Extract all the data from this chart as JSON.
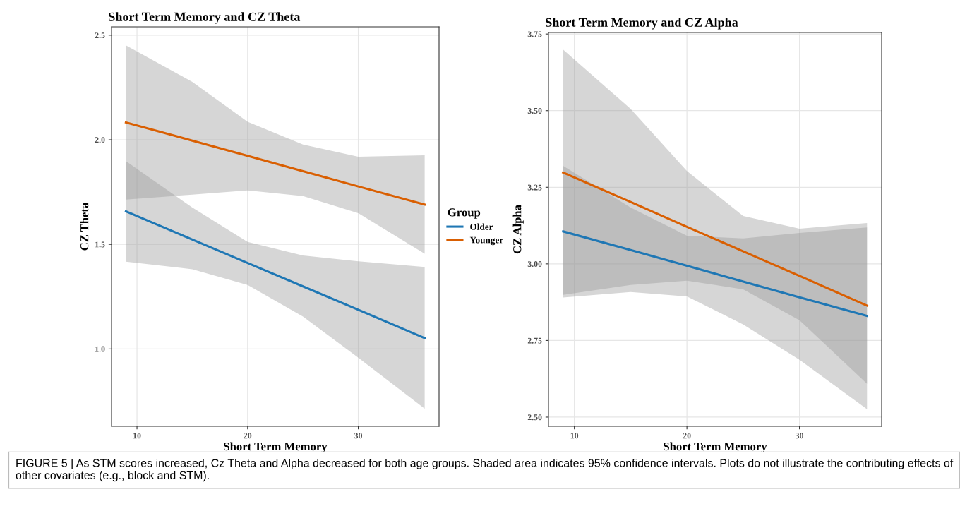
{
  "chart_data": [
    {
      "type": "line",
      "title": "Short Term Memory and CZ Theta",
      "xlabel": "Short Term Memory",
      "ylabel": "CZ Theta",
      "legend_title": "Group",
      "legend": "right",
      "grid": true,
      "marker": "none",
      "line_style": "solid",
      "xlim": [
        7.7,
        37.3
      ],
      "xticks": [
        10,
        20,
        30
      ],
      "ylim": [
        0.63,
        2.54
      ],
      "yticks": [
        {
          "value": 1.0,
          "label": "1.0"
        },
        {
          "value": 1.5,
          "label": "1.5"
        },
        {
          "value": 2.0,
          "label": "2.0"
        },
        {
          "value": 2.5,
          "label": "2.5"
        }
      ],
      "series": [
        {
          "name": "Older",
          "color": "#1f77b4",
          "x": [
            9,
            15,
            20,
            25,
            30,
            36
          ],
          "values": [
            1.658,
            1.523,
            1.411,
            1.299,
            1.187,
            1.052
          ],
          "lower": [
            1.417,
            1.381,
            1.306,
            1.155,
            0.958,
            0.714
          ],
          "upper": [
            1.898,
            1.676,
            1.512,
            1.447,
            1.419,
            1.392
          ]
        },
        {
          "name": "Younger",
          "color": "#d95f02",
          "x": [
            9,
            15,
            20,
            25,
            30,
            36
          ],
          "values": [
            2.083,
            1.996,
            1.923,
            1.85,
            1.777,
            1.69
          ],
          "lower": [
            1.714,
            1.738,
            1.758,
            1.731,
            1.649,
            1.455
          ],
          "upper": [
            2.451,
            2.277,
            2.086,
            1.977,
            1.919,
            1.926
          ]
        }
      ],
      "annotations": [
        "FIGURE 5 | As STM scores increased, Cz Theta and Alpha decreased for both age groups. Shaded area indicates 95% confidence intervals. Plots do not illustrate the contributing effects of other covariates (e.g., block and STM)."
      ]
    },
    {
      "type": "line",
      "title": "Short Term Memory and CZ Alpha",
      "xlabel": "Short Term Memory",
      "ylabel": "CZ Alpha",
      "grid": true,
      "marker": "none",
      "line_style": "solid",
      "xlim": [
        7.7,
        37.3
      ],
      "xticks": [
        10,
        20,
        30
      ],
      "ylim": [
        2.47,
        3.755
      ],
      "yticks": [
        {
          "value": 2.5,
          "label": "2.50"
        },
        {
          "value": 2.75,
          "label": "2.75"
        },
        {
          "value": 3.0,
          "label": "3.00"
        },
        {
          "value": 3.25,
          "label": "3.25"
        },
        {
          "value": 3.5,
          "label": "3.50"
        },
        {
          "value": 3.75,
          "label": "3.75"
        }
      ],
      "series": [
        {
          "color": "#1f77b4",
          "x": [
            9,
            15,
            20,
            25,
            30,
            36
          ],
          "values": [
            3.106,
            3.045,
            2.994,
            2.942,
            2.891,
            2.83
          ],
          "lower": [
            2.899,
            2.931,
            2.945,
            2.917,
            2.816,
            2.609
          ],
          "upper": [
            3.32,
            3.184,
            3.092,
            3.083,
            3.101,
            3.119
          ]
        },
        {
          "color": "#d95f02",
          "x": [
            9,
            15,
            20,
            25,
            30,
            36
          ],
          "values": [
            3.298,
            3.202,
            3.121,
            3.041,
            2.961,
            2.864
          ],
          "lower": [
            2.89,
            2.908,
            2.894,
            2.802,
            2.687,
            2.526
          ],
          "upper": [
            3.699,
            3.506,
            3.303,
            3.156,
            3.115,
            3.133
          ]
        }
      ]
    }
  ]
}
